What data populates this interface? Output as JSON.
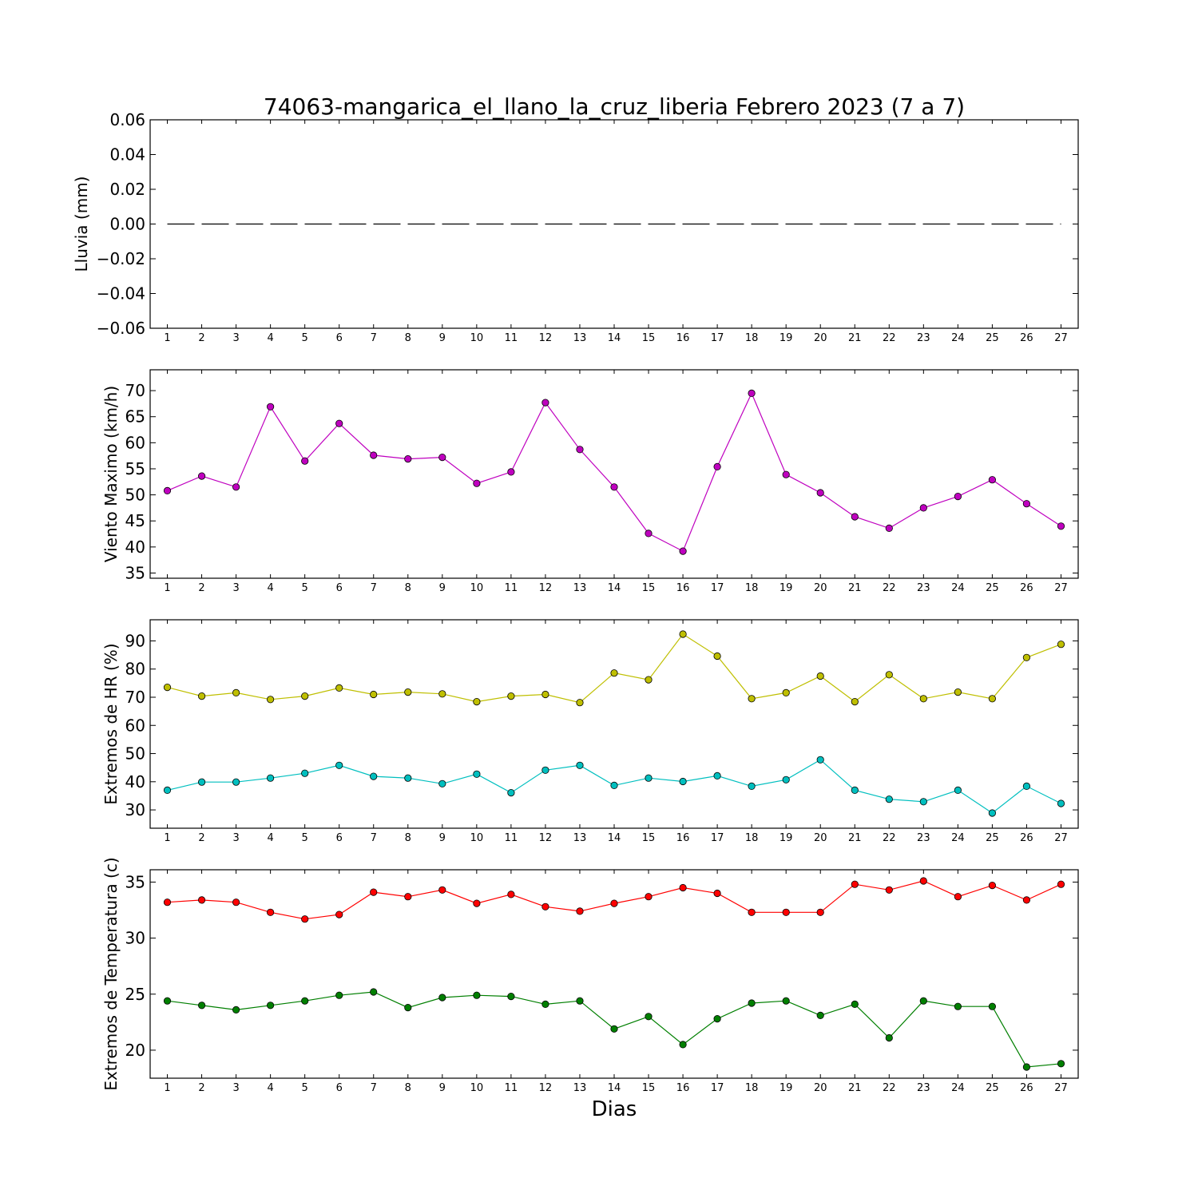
{
  "title": "74063-mangarica_el_llano_la_cruz_liberia Febrero 2023  (7 a 7)",
  "xlabel": "Dias",
  "chart_data": [
    {
      "type": "line",
      "ylabel": "Lluvia (mm)",
      "x": [
        1,
        2,
        3,
        4,
        5,
        6,
        7,
        8,
        9,
        10,
        11,
        12,
        13,
        14,
        15,
        16,
        17,
        18,
        19,
        20,
        21,
        22,
        23,
        24,
        25,
        26,
        27
      ],
      "xlim": [
        0.5,
        27.5
      ],
      "ylim": [
        -0.06,
        0.06
      ],
      "yticks": [
        "0.06",
        "0.04",
        "0.02",
        "0.00",
        "−0.02",
        "−0.04",
        "−0.06"
      ],
      "ytick_values": [
        0.06,
        0.04,
        0.02,
        0.0,
        -0.02,
        -0.04,
        -0.06
      ],
      "series": [
        {
          "color": "#000000",
          "style": "dashed",
          "markers": false,
          "values": [
            0,
            0,
            0,
            0,
            0,
            0,
            0,
            0,
            0,
            0,
            0,
            0,
            0,
            0,
            0,
            0,
            0,
            0,
            0,
            0,
            0,
            0,
            0,
            0,
            0,
            0,
            0
          ]
        }
      ]
    },
    {
      "type": "line",
      "ylabel": "Viento Maximo (km/h)",
      "x": [
        1,
        2,
        3,
        4,
        5,
        6,
        7,
        8,
        9,
        10,
        11,
        12,
        13,
        14,
        15,
        16,
        17,
        18,
        19,
        20,
        21,
        22,
        23,
        24,
        25,
        26,
        27
      ],
      "xlim": [
        0.5,
        27.5
      ],
      "ylim": [
        34,
        74
      ],
      "yticks": [
        "70",
        "65",
        "60",
        "55",
        "50",
        "45",
        "40",
        "35"
      ],
      "ytick_values": [
        70,
        65,
        60,
        55,
        50,
        45,
        40,
        35
      ],
      "series": [
        {
          "color": "#bf00bf",
          "style": "solid",
          "markers": true,
          "values": [
            50.8,
            53.6,
            51.5,
            66.9,
            56.5,
            63.7,
            57.6,
            56.9,
            57.2,
            52.2,
            54.4,
            67.7,
            58.7,
            51.5,
            42.6,
            39.2,
            55.4,
            69.5,
            53.9,
            50.4,
            45.8,
            43.6,
            47.5,
            49.7,
            52.9,
            48.3,
            44.0
          ]
        }
      ]
    },
    {
      "type": "line",
      "ylabel": "Extremos de HR (%)",
      "x": [
        1,
        2,
        3,
        4,
        5,
        6,
        7,
        8,
        9,
        10,
        11,
        12,
        13,
        14,
        15,
        16,
        17,
        18,
        19,
        20,
        21,
        22,
        23,
        24,
        25,
        26,
        27
      ],
      "xlim": [
        0.5,
        27.5
      ],
      "ylim": [
        23.5,
        97.5
      ],
      "yticks": [
        "90",
        "80",
        "70",
        "60",
        "50",
        "40",
        "30"
      ],
      "ytick_values": [
        90,
        80,
        70,
        60,
        50,
        40,
        30
      ],
      "series": [
        {
          "color": "#bfbf00",
          "style": "solid",
          "markers": true,
          "values": [
            73.5,
            70.4,
            71.6,
            69.2,
            70.4,
            73.3,
            71.0,
            71.8,
            71.2,
            68.4,
            70.4,
            71.0,
            68.1,
            78.6,
            76.2,
            92.4,
            84.6,
            69.5,
            71.6,
            77.5,
            68.4,
            78.0,
            69.5,
            71.8,
            69.5,
            84.1,
            88.8
          ]
        },
        {
          "color": "#00bfbf",
          "style": "solid",
          "markers": true,
          "values": [
            37.0,
            39.9,
            39.9,
            41.3,
            43.0,
            45.8,
            41.9,
            41.3,
            39.3,
            42.7,
            36.1,
            44.1,
            45.8,
            38.7,
            41.3,
            40.1,
            42.1,
            38.4,
            40.7,
            47.8,
            37.0,
            33.8,
            32.9,
            37.0,
            28.9,
            38.4,
            32.3
          ]
        }
      ]
    },
    {
      "type": "line",
      "ylabel": "Extremos de Temperatura (c)",
      "x": [
        1,
        2,
        3,
        4,
        5,
        6,
        7,
        8,
        9,
        10,
        11,
        12,
        13,
        14,
        15,
        16,
        17,
        18,
        19,
        20,
        21,
        22,
        23,
        24,
        25,
        26,
        27
      ],
      "xlim": [
        0.5,
        27.5
      ],
      "ylim": [
        17.5,
        36.1
      ],
      "yticks": [
        "35",
        "30",
        "25",
        "20"
      ],
      "ytick_values": [
        35,
        30,
        25,
        20
      ],
      "series": [
        {
          "color": "#ff0000",
          "style": "solid",
          "markers": true,
          "values": [
            33.2,
            33.4,
            33.2,
            32.3,
            31.7,
            32.1,
            34.1,
            33.7,
            34.3,
            33.1,
            33.9,
            32.8,
            32.4,
            33.1,
            33.7,
            34.5,
            34.0,
            32.3,
            32.3,
            32.3,
            34.8,
            34.3,
            35.1,
            33.7,
            34.7,
            33.4,
            34.8
          ]
        },
        {
          "color": "#007f00",
          "style": "solid",
          "markers": true,
          "values": [
            24.4,
            24.0,
            23.6,
            24.0,
            24.4,
            24.9,
            25.2,
            23.8,
            24.7,
            24.9,
            24.8,
            24.1,
            24.4,
            21.9,
            23.0,
            20.5,
            22.8,
            24.2,
            24.4,
            23.1,
            24.1,
            21.1,
            24.4,
            23.9,
            23.9,
            18.5,
            18.8
          ]
        }
      ]
    }
  ]
}
